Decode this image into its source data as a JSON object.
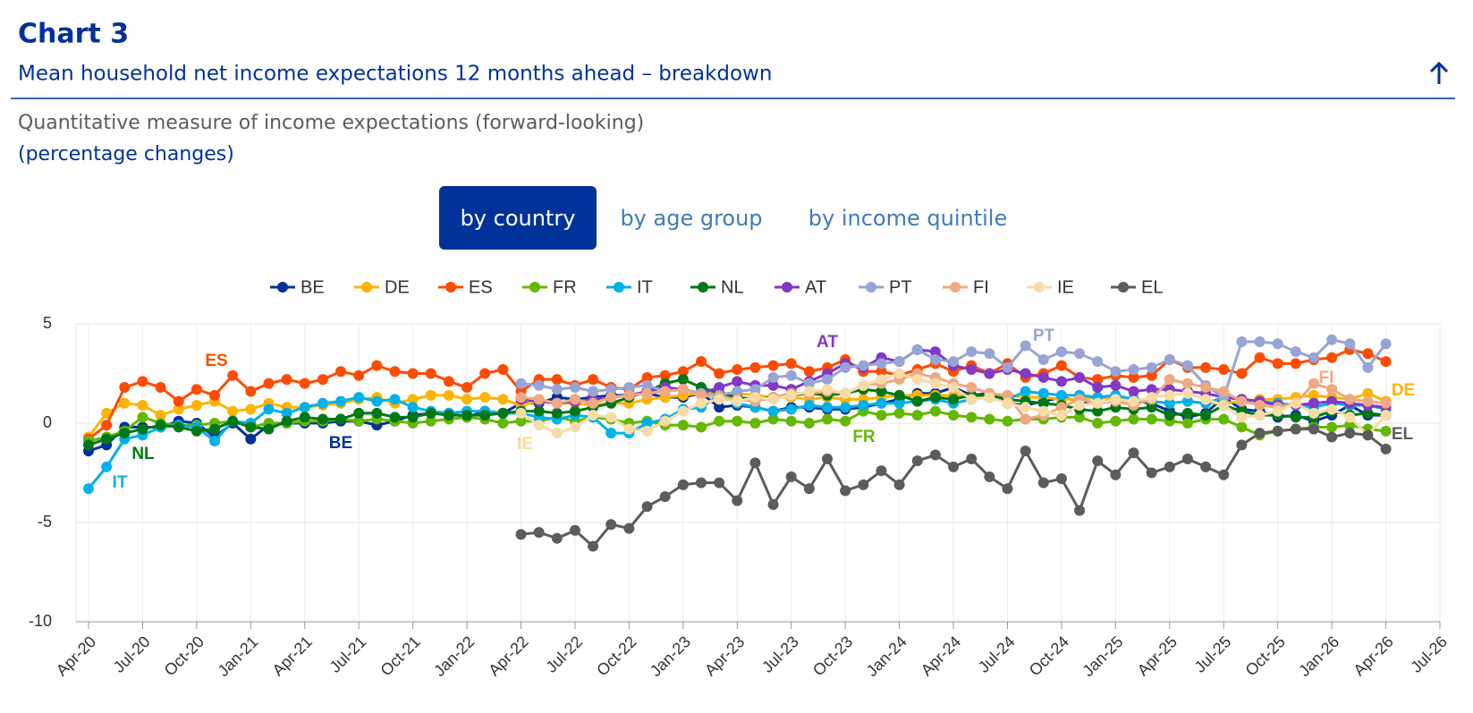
{
  "header": {
    "title": "Chart 3",
    "subtitle": "Mean household net income expectations 12 months ahead – breakdown",
    "description": "Quantitative measure of income expectations (forward-looking)",
    "unit": "(percentage changes)"
  },
  "tabs": [
    {
      "label": "by country",
      "selected": true
    },
    {
      "label": "by age group",
      "selected": false
    },
    {
      "label": "by income quintile",
      "selected": false
    }
  ],
  "chart_data": {
    "type": "line",
    "grid": true,
    "legend": "top",
    "x": [
      "2020-04",
      "2020-05",
      "2020-06",
      "2020-07",
      "2020-08",
      "2020-09",
      "2020-10",
      "2020-11",
      "2020-12",
      "2021-01",
      "2021-02",
      "2021-03",
      "2021-04",
      "2021-05",
      "2021-06",
      "2021-07",
      "2021-08",
      "2021-09",
      "2021-10",
      "2021-11",
      "2021-12",
      "2022-01",
      "2022-02",
      "2022-03",
      "2022-04",
      "2022-05",
      "2022-06",
      "2022-07",
      "2022-08",
      "2022-09",
      "2022-10",
      "2022-11",
      "2022-12",
      "2023-01",
      "2023-02",
      "2023-03",
      "2023-04",
      "2023-05",
      "2023-06",
      "2023-07",
      "2023-08",
      "2023-09",
      "2023-10",
      "2023-11",
      "2023-12",
      "2024-01",
      "2024-02",
      "2024-03",
      "2024-04",
      "2024-05",
      "2024-06",
      "2024-07",
      "2024-08",
      "2024-09",
      "2024-10",
      "2024-11",
      "2024-12",
      "2025-01",
      "2025-02",
      "2025-03",
      "2025-04",
      "2025-05",
      "2025-06",
      "2025-07",
      "2025-08",
      "2025-09",
      "2025-10",
      "2025-11",
      "2025-12",
      "2026-01",
      "2026-02",
      "2026-03",
      "2026-04"
    ],
    "xlim": [
      "2020-04",
      "2026-07"
    ],
    "xticks": [
      {
        "value": "2020-04",
        "label": "Apr-20"
      },
      {
        "value": "2020-07",
        "label": "Jul-20"
      },
      {
        "value": "2020-10",
        "label": "Oct-20"
      },
      {
        "value": "2021-01",
        "label": "Jan-21"
      },
      {
        "value": "2021-04",
        "label": "Apr-21"
      },
      {
        "value": "2021-07",
        "label": "Jul-21"
      },
      {
        "value": "2021-10",
        "label": "Oct-21"
      },
      {
        "value": "2022-01",
        "label": "Jan-22"
      },
      {
        "value": "2022-04",
        "label": "Apr-22"
      },
      {
        "value": "2022-07",
        "label": "Jul-22"
      },
      {
        "value": "2022-10",
        "label": "Oct-22"
      },
      {
        "value": "2023-01",
        "label": "Jan-23"
      },
      {
        "value": "2023-04",
        "label": "Apr-23"
      },
      {
        "value": "2023-07",
        "label": "Jul-23"
      },
      {
        "value": "2023-10",
        "label": "Oct-23"
      },
      {
        "value": "2024-01",
        "label": "Jan-24"
      },
      {
        "value": "2024-04",
        "label": "Apr-24"
      },
      {
        "value": "2024-07",
        "label": "Jul-24"
      },
      {
        "value": "2024-10",
        "label": "Oct-24"
      },
      {
        "value": "2025-01",
        "label": "Jan-25"
      },
      {
        "value": "2025-04",
        "label": "Apr-25"
      },
      {
        "value": "2025-07",
        "label": "Jul-25"
      },
      {
        "value": "2025-10",
        "label": "Oct-25"
      },
      {
        "value": "2026-01",
        "label": "Jan-26"
      },
      {
        "value": "2026-04",
        "label": "Apr-26"
      },
      {
        "value": "2026-07",
        "label": "Jul-26"
      }
    ],
    "ylim": [
      -10,
      5
    ],
    "yticks": [
      5,
      0,
      -5,
      -10
    ],
    "series": [
      {
        "name": "BE",
        "color": "#003299",
        "values": [
          -1.4,
          -1.1,
          -0.2,
          -0.2,
          -0.2,
          0.1,
          0.0,
          -0.7,
          0.0,
          -0.8,
          -0.1,
          0.0,
          0.0,
          0.0,
          0.1,
          0.1,
          -0.1,
          0.1,
          0.4,
          0.5,
          0.5,
          0.3,
          0.6,
          0.5,
          1.0,
          1.0,
          1.3,
          1.2,
          1.3,
          1.4,
          1.4,
          1.5,
          1.3,
          1.3,
          1.5,
          0.8,
          0.9,
          0.8,
          0.6,
          0.8,
          0.8,
          0.7,
          0.7,
          0.8,
          1.0,
          1.2,
          1.5,
          1.5,
          1.8,
          1.4,
          1.5,
          1.0,
          0.9,
          1.1,
          1.3,
          1.1,
          1.0,
          1.2,
          1.1,
          1.0,
          0.6,
          0.3,
          0.5,
          1.3,
          0.7,
          0.6,
          0.3,
          0.4,
          0.1,
          0.4,
          0.9,
          0.4,
          0.4
        ]
      },
      {
        "name": "DE",
        "color": "#ffb400",
        "values": [
          -0.7,
          0.5,
          1.0,
          0.9,
          0.4,
          0.7,
          0.9,
          1.1,
          0.6,
          0.7,
          1.0,
          0.8,
          0.8,
          0.9,
          1.0,
          1.2,
          1.3,
          1.0,
          1.2,
          1.4,
          1.4,
          1.2,
          1.3,
          1.2,
          0.9,
          1.1,
          1.0,
          1.0,
          0.9,
          1.0,
          1.0,
          1.2,
          1.3,
          1.4,
          1.5,
          1.5,
          1.5,
          1.4,
          1.3,
          1.3,
          1.2,
          1.3,
          1.2,
          1.2,
          1.3,
          1.4,
          1.4,
          1.4,
          1.4,
          1.4,
          1.3,
          1.4,
          1.3,
          1.3,
          1.2,
          1.2,
          1.3,
          1.2,
          1.2,
          1.1,
          1.0,
          1.1,
          1.0,
          1.0,
          1.1,
          1.2,
          1.2,
          1.3,
          1.4,
          1.3,
          1.2,
          1.5,
          1.1
        ]
      },
      {
        "name": "ES",
        "color": "#ff4b00",
        "values": [
          -0.8,
          -0.1,
          1.8,
          2.1,
          1.8,
          1.1,
          1.7,
          1.4,
          2.4,
          1.6,
          2.0,
          2.2,
          2.0,
          2.2,
          2.6,
          2.4,
          2.9,
          2.6,
          2.5,
          2.5,
          2.1,
          1.8,
          2.5,
          2.7,
          1.6,
          2.2,
          2.2,
          1.9,
          2.2,
          1.8,
          1.7,
          2.3,
          2.4,
          2.6,
          3.1,
          2.5,
          2.7,
          2.8,
          2.9,
          3.0,
          2.6,
          2.8,
          3.2,
          2.6,
          2.6,
          2.4,
          2.7,
          3.0,
          2.6,
          2.9,
          2.5,
          3.0,
          2.3,
          2.5,
          2.9,
          2.3,
          2.2,
          2.4,
          2.3,
          2.4,
          3.2,
          2.8,
          2.8,
          2.7,
          2.5,
          3.3,
          3.0,
          3.0,
          3.2,
          3.3,
          3.7,
          3.5,
          3.1
        ]
      },
      {
        "name": "FR",
        "color": "#65b800",
        "values": [
          -0.9,
          -0.7,
          -0.4,
          0.3,
          0.0,
          -0.1,
          -0.1,
          0.0,
          0.1,
          -0.2,
          0.0,
          0.0,
          0.1,
          0.1,
          0.2,
          0.1,
          0.2,
          0.1,
          0.0,
          0.1,
          0.2,
          0.3,
          0.2,
          0.0,
          0.1,
          0.1,
          0.3,
          0.1,
          0.3,
          0.2,
          0.0,
          0.1,
          -0.1,
          -0.1,
          -0.2,
          0.1,
          0.1,
          0.0,
          0.2,
          0.1,
          0.0,
          0.2,
          0.1,
          0.6,
          0.4,
          0.5,
          0.4,
          0.6,
          0.4,
          0.3,
          0.2,
          0.1,
          0.2,
          0.2,
          0.3,
          0.3,
          0.0,
          0.1,
          0.2,
          0.2,
          0.1,
          0.0,
          0.2,
          0.2,
          -0.2,
          -0.6,
          -0.4,
          -0.3,
          -0.2,
          -0.2,
          -0.1,
          -0.3,
          -0.4
        ]
      },
      {
        "name": "IT",
        "color": "#00b1ea",
        "values": [
          -3.3,
          -2.2,
          -0.8,
          -0.6,
          -0.2,
          -0.1,
          -0.2,
          -0.9,
          0.1,
          0.0,
          0.7,
          0.5,
          0.8,
          1.0,
          1.1,
          1.3,
          1.1,
          1.2,
          0.8,
          0.6,
          0.5,
          0.6,
          0.6,
          0.5,
          0.5,
          0.3,
          0.2,
          0.4,
          0.3,
          -0.5,
          -0.5,
          0.0,
          0.2,
          0.7,
          0.8,
          1.4,
          1.0,
          0.8,
          0.6,
          0.7,
          0.9,
          0.8,
          0.8,
          0.9,
          1.0,
          1.0,
          1.1,
          1.2,
          1.0,
          1.2,
          1.3,
          1.2,
          1.6,
          1.5,
          1.4,
          1.4,
          1.3,
          1.4,
          1.2,
          1.1,
          1.0,
          1.1,
          1.0,
          1.3,
          1.2,
          1.1,
          1.0,
          0.9,
          0.8,
          1.0,
          0.9,
          0.9,
          0.7
        ]
      },
      {
        "name": "NL",
        "color": "#007816",
        "values": [
          -1.1,
          -0.8,
          -0.5,
          -0.3,
          -0.1,
          -0.2,
          -0.4,
          -0.3,
          0.1,
          -0.2,
          -0.3,
          0.1,
          0.3,
          0.2,
          0.2,
          0.5,
          0.5,
          0.3,
          0.3,
          0.5,
          0.4,
          0.4,
          0.4,
          0.5,
          0.6,
          0.6,
          0.5,
          0.6,
          0.8,
          1.0,
          1.3,
          1.6,
          2.0,
          2.2,
          1.8,
          1.5,
          1.3,
          1.2,
          1.3,
          1.4,
          1.5,
          1.4,
          1.5,
          1.7,
          1.6,
          1.4,
          1.1,
          1.3,
          1.2,
          1.4,
          1.4,
          1.2,
          1.1,
          1.0,
          0.9,
          0.7,
          0.6,
          0.8,
          0.7,
          0.8,
          0.4,
          0.5,
          0.4,
          0.9,
          0.6,
          0.4,
          0.4,
          0.3,
          0.3,
          0.6,
          0.4,
          0.5,
          0.4
        ]
      },
      {
        "name": "AT",
        "color": "#8139c6",
        "values": [
          null,
          null,
          null,
          null,
          null,
          null,
          null,
          null,
          null,
          null,
          null,
          null,
          null,
          null,
          null,
          null,
          null,
          null,
          null,
          null,
          null,
          null,
          null,
          null,
          1.2,
          1.1,
          1.0,
          1.1,
          1.2,
          1.3,
          1.4,
          1.6,
          1.8,
          1.7,
          1.5,
          1.8,
          2.1,
          1.9,
          1.9,
          1.7,
          2.1,
          2.5,
          3.0,
          2.8,
          3.3,
          3.1,
          3.7,
          3.6,
          2.9,
          2.7,
          2.5,
          2.7,
          2.5,
          2.3,
          2.1,
          2.3,
          1.8,
          1.9,
          1.6,
          1.7,
          1.7,
          1.6,
          1.5,
          1.3,
          1.2,
          1.1,
          0.9,
          0.9,
          1.0,
          1.1,
          1.0,
          0.9,
          0.8
        ]
      },
      {
        "name": "PT",
        "color": "#98a4d6",
        "values": [
          null,
          null,
          null,
          null,
          null,
          null,
          null,
          null,
          null,
          null,
          null,
          null,
          null,
          null,
          null,
          null,
          null,
          null,
          null,
          null,
          null,
          null,
          null,
          null,
          2.0,
          1.9,
          1.7,
          1.8,
          1.6,
          1.7,
          1.8,
          1.9,
          1.6,
          1.7,
          1.5,
          1.4,
          1.6,
          1.7,
          2.3,
          2.4,
          2.0,
          2.2,
          2.8,
          2.9,
          3.0,
          3.1,
          3.7,
          3.2,
          3.1,
          3.6,
          3.5,
          2.8,
          3.9,
          3.2,
          3.6,
          3.5,
          3.1,
          2.6,
          2.7,
          2.8,
          3.2,
          2.9,
          1.9,
          1.3,
          4.1,
          4.1,
          4.0,
          3.6,
          3.3,
          4.2,
          4.0,
          2.8,
          4.0
        ]
      },
      {
        "name": "FI",
        "color": "#f0a882",
        "values": [
          null,
          null,
          null,
          null,
          null,
          null,
          null,
          null,
          null,
          null,
          null,
          null,
          null,
          null,
          null,
          null,
          null,
          null,
          null,
          null,
          null,
          null,
          null,
          null,
          1.3,
          1.2,
          1.0,
          1.2,
          1.0,
          1.3,
          1.4,
          1.5,
          1.6,
          1.7,
          1.4,
          1.3,
          1.2,
          1.1,
          1.3,
          1.5,
          1.5,
          1.6,
          1.5,
          1.9,
          2.0,
          2.2,
          2.5,
          2.3,
          2.0,
          1.8,
          1.5,
          1.4,
          0.2,
          0.4,
          0.8,
          1.2,
          1.0,
          1.1,
          0.9,
          1.2,
          2.2,
          2.0,
          1.8,
          1.6,
          1.1,
          0.9,
          0.8,
          1.0,
          2.0,
          1.7,
          1.2,
          1.1,
          1.0
        ]
      },
      {
        "name": "IE",
        "color": "#f8dca6",
        "values": [
          null,
          null,
          null,
          null,
          null,
          null,
          null,
          null,
          null,
          null,
          null,
          null,
          null,
          null,
          null,
          null,
          null,
          null,
          null,
          null,
          null,
          null,
          null,
          null,
          0.5,
          -0.1,
          -0.5,
          -0.2,
          0.4,
          0.3,
          -0.3,
          -0.4,
          0.1,
          0.6,
          1.0,
          1.2,
          1.1,
          1.3,
          1.2,
          1.4,
          1.6,
          1.7,
          1.5,
          1.9,
          2.2,
          2.5,
          2.2,
          2.0,
          1.8,
          1.2,
          1.3,
          1.0,
          0.8,
          0.6,
          0.4,
          0.9,
          1.0,
          1.2,
          1.1,
          1.3,
          1.4,
          1.5,
          1.2,
          0.9,
          0.3,
          0.4,
          0.6,
          1.0,
          0.5,
          0.7,
          0.3,
          -0.6,
          0.4
        ]
      },
      {
        "name": "EL",
        "color": "#5c5c5c",
        "values": [
          null,
          null,
          null,
          null,
          null,
          null,
          null,
          null,
          null,
          null,
          null,
          null,
          null,
          null,
          null,
          null,
          null,
          null,
          null,
          null,
          null,
          null,
          null,
          null,
          -5.6,
          -5.5,
          -5.8,
          -5.4,
          -6.2,
          -5.1,
          -5.3,
          -4.2,
          -3.7,
          -3.1,
          -3.0,
          -3.0,
          -3.9,
          -2.0,
          -4.1,
          -2.7,
          -3.3,
          -1.8,
          -3.4,
          -3.1,
          -2.4,
          -3.1,
          -1.9,
          -1.6,
          -2.2,
          -1.8,
          -2.7,
          -3.3,
          -1.4,
          -3.0,
          -2.8,
          -4.4,
          -1.9,
          -2.6,
          -1.5,
          -2.5,
          -2.2,
          -1.8,
          -2.2,
          -2.6,
          -1.1,
          -0.5,
          -0.4,
          -0.3,
          -0.3,
          -0.7,
          -0.5,
          -0.6,
          -1.3
        ]
      }
    ]
  }
}
